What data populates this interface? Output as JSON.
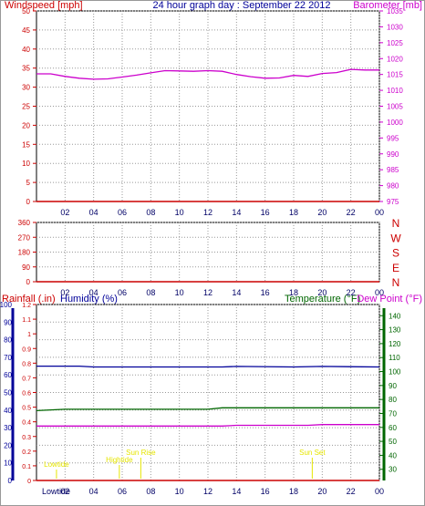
{
  "header": {
    "title": "24 hour graph day : September 22 2012",
    "left_axis": "Windspeed [mph]",
    "right_axis": "Barometer [mb]"
  },
  "bottom_header": {
    "rain_label": "Rainfall (.in)",
    "humidity_label": "Humidity (%)",
    "temp_label": "Temperature (°F)",
    "dew_label": "Dew Point (°F)"
  },
  "colors": {
    "wind": "#cc0000",
    "baro": "#cc00cc",
    "humidity": "#000099",
    "temp": "#006600",
    "dew": "#cc00cc",
    "rain": "#cc0000",
    "events": "#e6e600",
    "grid": "#999999"
  },
  "chart_data": [
    {
      "type": "line",
      "title": "24 hour graph day : September 22 2012",
      "x_ticks": [
        "02",
        "04",
        "06",
        "08",
        "10",
        "12",
        "14",
        "16",
        "18",
        "20",
        "22",
        "00"
      ],
      "xlim": [
        0,
        24
      ],
      "y_left_label": "Windspeed [mph]",
      "y_left_ticks": [
        "0",
        "5",
        "10",
        "15",
        "20",
        "25",
        "30",
        "35",
        "40",
        "45",
        "50"
      ],
      "y_left_lim": [
        0,
        50
      ],
      "y_right_label": "Barometer [mb]",
      "y_right_ticks": [
        "975",
        "980",
        "985",
        "990",
        "995",
        "1000",
        "1005",
        "1010",
        "1015",
        "1020",
        "1025",
        "1030",
        "1035"
      ],
      "y_right_lim": [
        975,
        1035
      ],
      "series": [
        {
          "x": [
            0,
            1,
            2,
            3,
            4,
            5,
            6,
            7,
            8,
            9,
            10,
            11,
            12,
            13,
            14,
            15,
            16,
            17,
            18,
            19,
            20,
            21,
            22,
            23,
            24
          ],
          "values": [
            1015.2,
            1015.2,
            1014.4,
            1013.8,
            1013.5,
            1013.6,
            1014.2,
            1014.8,
            1015.5,
            1016.2,
            1016.1,
            1016.0,
            1016.2,
            1016.0,
            1015.0,
            1014.3,
            1013.8,
            1013.9,
            1014.7,
            1014.4,
            1015.3,
            1015.6,
            1016.6,
            1016.4,
            1016.4
          ]
        },
        {
          "x": [
            0,
            24
          ],
          "values": [
            0,
            0
          ]
        }
      ]
    },
    {
      "type": "line",
      "x_ticks": [
        "02",
        "04",
        "06",
        "08",
        "10",
        "12",
        "14",
        "16",
        "18",
        "20",
        "22",
        "00"
      ],
      "xlim": [
        0,
        24
      ],
      "y_left_ticks": [
        "0",
        "90",
        "180",
        "270",
        "360"
      ],
      "y_left_lim": [
        0,
        360
      ],
      "y_right_ticks": [
        "N",
        "E",
        "S",
        "W",
        "N"
      ],
      "series": [
        {
          "x": [
            0,
            24
          ],
          "values": [
            0,
            0
          ]
        }
      ]
    },
    {
      "type": "line",
      "x_ticks": [
        "02",
        "04",
        "06",
        "08",
        "10",
        "12",
        "14",
        "16",
        "18",
        "20",
        "22",
        "00"
      ],
      "xlim": [
        0,
        24
      ],
      "y_left_label": "Humidity (%)",
      "y_left_ticks": [
        "0",
        "10",
        "20",
        "30",
        "40",
        "50",
        "60",
        "70",
        "80",
        "90",
        "100"
      ],
      "y_left_lim": [
        0,
        100
      ],
      "y_rain_label": "Rainfall (.in)",
      "y_rain_ticks": [
        "0",
        "0.1",
        "0.2",
        "0.3",
        "0.4",
        "0.5",
        "0.6",
        "0.7",
        "0.8",
        "0.9",
        "1",
        "1.1",
        "1.2"
      ],
      "y_rain_lim": [
        0,
        1.2
      ],
      "y_right_label": "Temperature (°F)",
      "y_right_label_2": "Dew Point (°F)",
      "y_right_ticks": [
        "30",
        "40",
        "50",
        "60",
        "70",
        "80",
        "90",
        "100",
        "110",
        "120",
        "130",
        "140"
      ],
      "y_right_lim": [
        22,
        148
      ],
      "series": [
        {
          "x": [
            0,
            3,
            4,
            8,
            13,
            14,
            18,
            20,
            24
          ],
          "values": [
            65,
            65,
            64.5,
            64.5,
            64.5,
            64.8,
            64.5,
            64.8,
            64.5
          ]
        },
        {
          "x": [
            0,
            2,
            12,
            13,
            24
          ],
          "values": [
            72,
            73,
            73,
            74,
            74
          ]
        },
        {
          "x": [
            0,
            13,
            14,
            19,
            20,
            24
          ],
          "values": [
            61,
            61,
            61.5,
            61.5,
            62,
            62
          ]
        },
        {
          "x": [
            0,
            24
          ],
          "values": [
            0,
            0
          ]
        }
      ],
      "events": [
        {
          "label": "Lowtide",
          "x": 1.4
        },
        {
          "label": "Hightide",
          "x": 5.8
        },
        {
          "label": "Sun Rise",
          "x": 7.3
        },
        {
          "label": "Sun Set",
          "x": 19.3
        }
      ],
      "bottom_label": "Lowtide"
    }
  ]
}
